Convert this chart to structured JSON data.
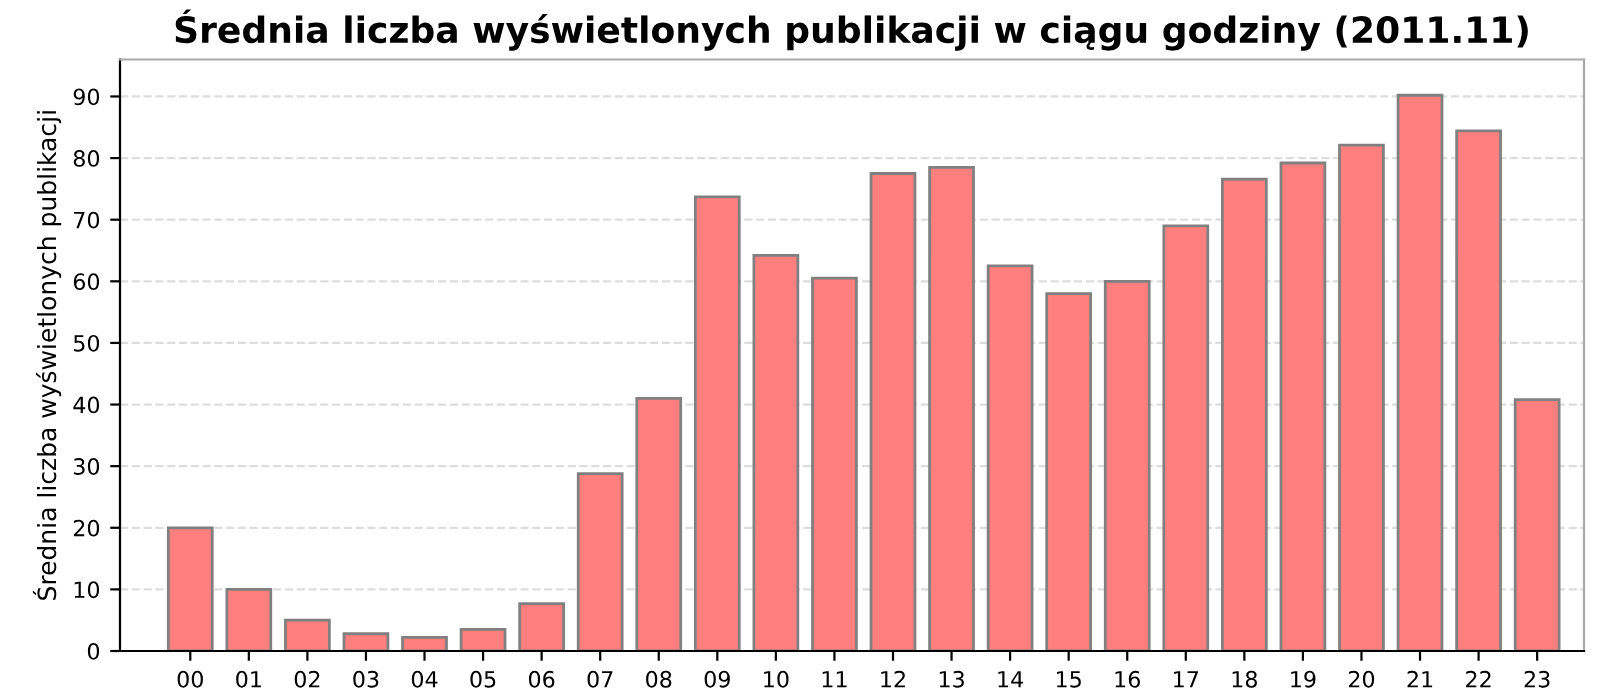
{
  "chart_data": {
    "type": "bar",
    "title": "Średnia liczba wyświetlonych publikacji w ciągu godziny (2011.11)",
    "ylabel": "Średnia liczba wyświetlonych publikacji",
    "categories": [
      "00",
      "01",
      "02",
      "03",
      "04",
      "05",
      "06",
      "07",
      "08",
      "09",
      "10",
      "11",
      "12",
      "13",
      "14",
      "15",
      "16",
      "17",
      "18",
      "19",
      "20",
      "21",
      "22",
      "23"
    ],
    "values": [
      20,
      10,
      5,
      2.8,
      2.2,
      3.5,
      7.7,
      28.8,
      41,
      73.7,
      64.2,
      60.5,
      77.5,
      78.5,
      62.5,
      58,
      60,
      69,
      76.6,
      79.2,
      82.1,
      90.2,
      84.4,
      40.8
    ],
    "color": "#ff7f7f",
    "ylim": [
      0,
      96
    ],
    "yticks": [
      0,
      10,
      20,
      30,
      40,
      50,
      60,
      70,
      80,
      90
    ],
    "grid": "y",
    "legend": false
  }
}
